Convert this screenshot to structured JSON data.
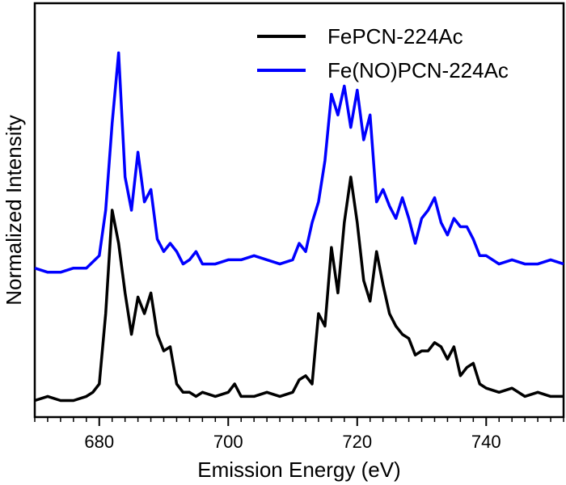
{
  "chart_data": {
    "type": "line",
    "title": "",
    "xlabel": "Emission Energy (eV)",
    "ylabel": "Normalized Intensity",
    "xlim": [
      670,
      752
    ],
    "ylim": [
      0,
      1.0
    ],
    "x_ticks": [
      680,
      700,
      720,
      740
    ],
    "x_tick_labels": [
      "680",
      "700",
      "720",
      "740"
    ],
    "y_ticks_shown": false,
    "grid": false,
    "legend_position": "top-right",
    "series": [
      {
        "name": "FePCN-224Ac",
        "color": "#000000",
        "x": [
          670,
          672,
          674,
          676,
          678,
          679,
          680,
          681,
          682,
          683,
          684,
          685,
          686,
          687,
          688,
          689,
          690,
          691,
          692,
          693,
          694,
          695,
          696,
          698,
          700,
          701,
          702,
          704,
          706,
          708,
          710,
          711,
          712,
          713,
          714,
          715,
          716,
          717,
          718,
          719,
          720,
          721,
          722,
          723,
          724,
          725,
          726,
          727,
          728,
          729,
          730,
          731,
          732,
          733,
          734,
          735,
          736,
          737,
          738,
          739,
          740,
          742,
          744,
          746,
          748,
          750,
          752
        ],
        "values": [
          0.04,
          0.05,
          0.04,
          0.04,
          0.05,
          0.06,
          0.08,
          0.25,
          0.5,
          0.42,
          0.3,
          0.2,
          0.29,
          0.25,
          0.3,
          0.2,
          0.16,
          0.17,
          0.08,
          0.06,
          0.06,
          0.05,
          0.06,
          0.05,
          0.06,
          0.08,
          0.05,
          0.05,
          0.06,
          0.05,
          0.06,
          0.09,
          0.1,
          0.08,
          0.25,
          0.22,
          0.41,
          0.3,
          0.47,
          0.58,
          0.47,
          0.33,
          0.28,
          0.4,
          0.32,
          0.25,
          0.22,
          0.2,
          0.19,
          0.15,
          0.16,
          0.16,
          0.18,
          0.17,
          0.14,
          0.17,
          0.1,
          0.12,
          0.13,
          0.08,
          0.07,
          0.06,
          0.07,
          0.05,
          0.06,
          0.05,
          0.05
        ]
      },
      {
        "name": "Fe(NO)PCN-224Ac",
        "color": "#0000ff",
        "x": [
          670,
          672,
          674,
          676,
          678,
          680,
          681,
          682,
          683,
          684,
          685,
          686,
          687,
          688,
          689,
          690,
          691,
          692,
          693,
          694,
          695,
          696,
          698,
          700,
          702,
          704,
          706,
          708,
          710,
          711,
          712,
          713,
          714,
          715,
          716,
          717,
          718,
          719,
          720,
          721,
          722,
          723,
          724,
          725,
          726,
          727,
          728,
          729,
          730,
          731,
          732,
          733,
          734,
          735,
          736,
          737,
          738,
          739,
          740,
          742,
          744,
          746,
          748,
          750,
          752
        ],
        "values": [
          0.36,
          0.35,
          0.35,
          0.36,
          0.36,
          0.39,
          0.5,
          0.71,
          0.88,
          0.58,
          0.5,
          0.64,
          0.52,
          0.55,
          0.43,
          0.4,
          0.42,
          0.4,
          0.37,
          0.38,
          0.4,
          0.37,
          0.37,
          0.38,
          0.38,
          0.39,
          0.38,
          0.37,
          0.38,
          0.42,
          0.4,
          0.47,
          0.52,
          0.62,
          0.78,
          0.73,
          0.8,
          0.7,
          0.79,
          0.67,
          0.73,
          0.52,
          0.55,
          0.51,
          0.48,
          0.53,
          0.48,
          0.42,
          0.48,
          0.5,
          0.53,
          0.47,
          0.44,
          0.48,
          0.46,
          0.46,
          0.43,
          0.39,
          0.39,
          0.37,
          0.38,
          0.37,
          0.37,
          0.38,
          0.37
        ]
      }
    ]
  }
}
